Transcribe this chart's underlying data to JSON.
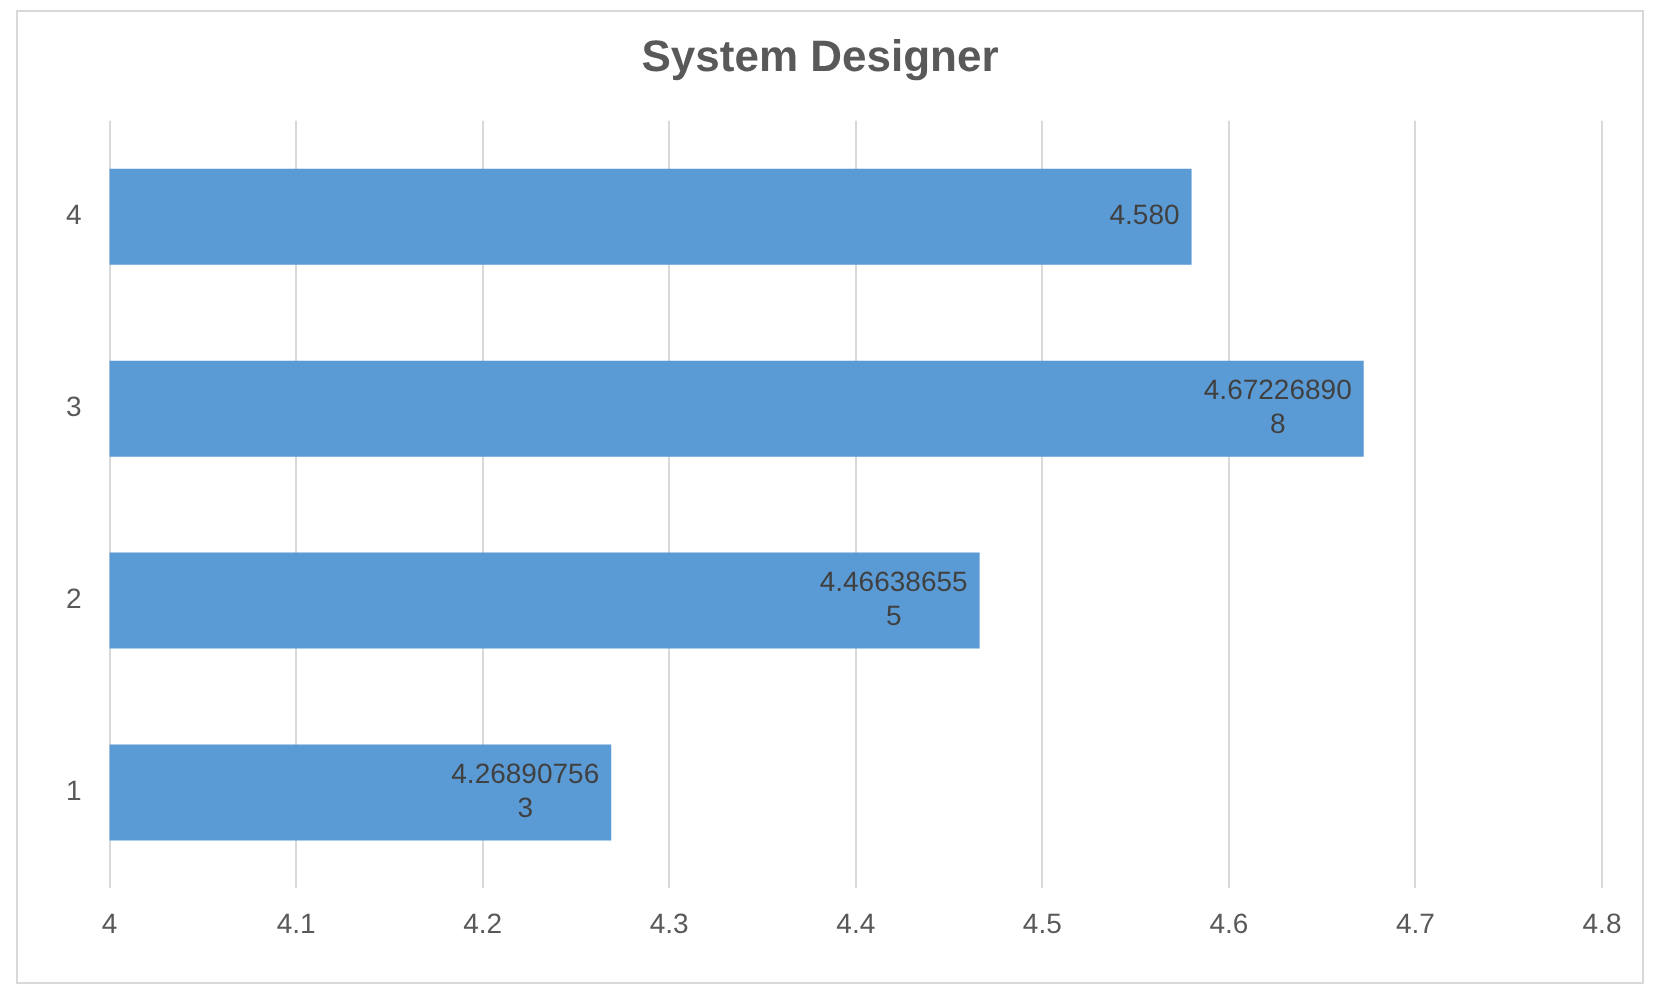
{
  "chart_data": {
    "type": "bar",
    "orientation": "horizontal",
    "title": "System Designer",
    "categories": [
      "4",
      "3",
      "2",
      "1"
    ],
    "values": [
      4.58,
      4.672268908,
      4.466386555,
      4.268907563
    ],
    "value_labels": [
      "4.580",
      "4.672268908",
      "4.466386555",
      "4.268907563"
    ],
    "color": "#5b9bd5",
    "xlim": [
      4,
      4.8
    ],
    "xticks": [
      4,
      4.1,
      4.2,
      4.3,
      4.4,
      4.5,
      4.6,
      4.7,
      4.8
    ],
    "grid": "x",
    "legend": false
  }
}
